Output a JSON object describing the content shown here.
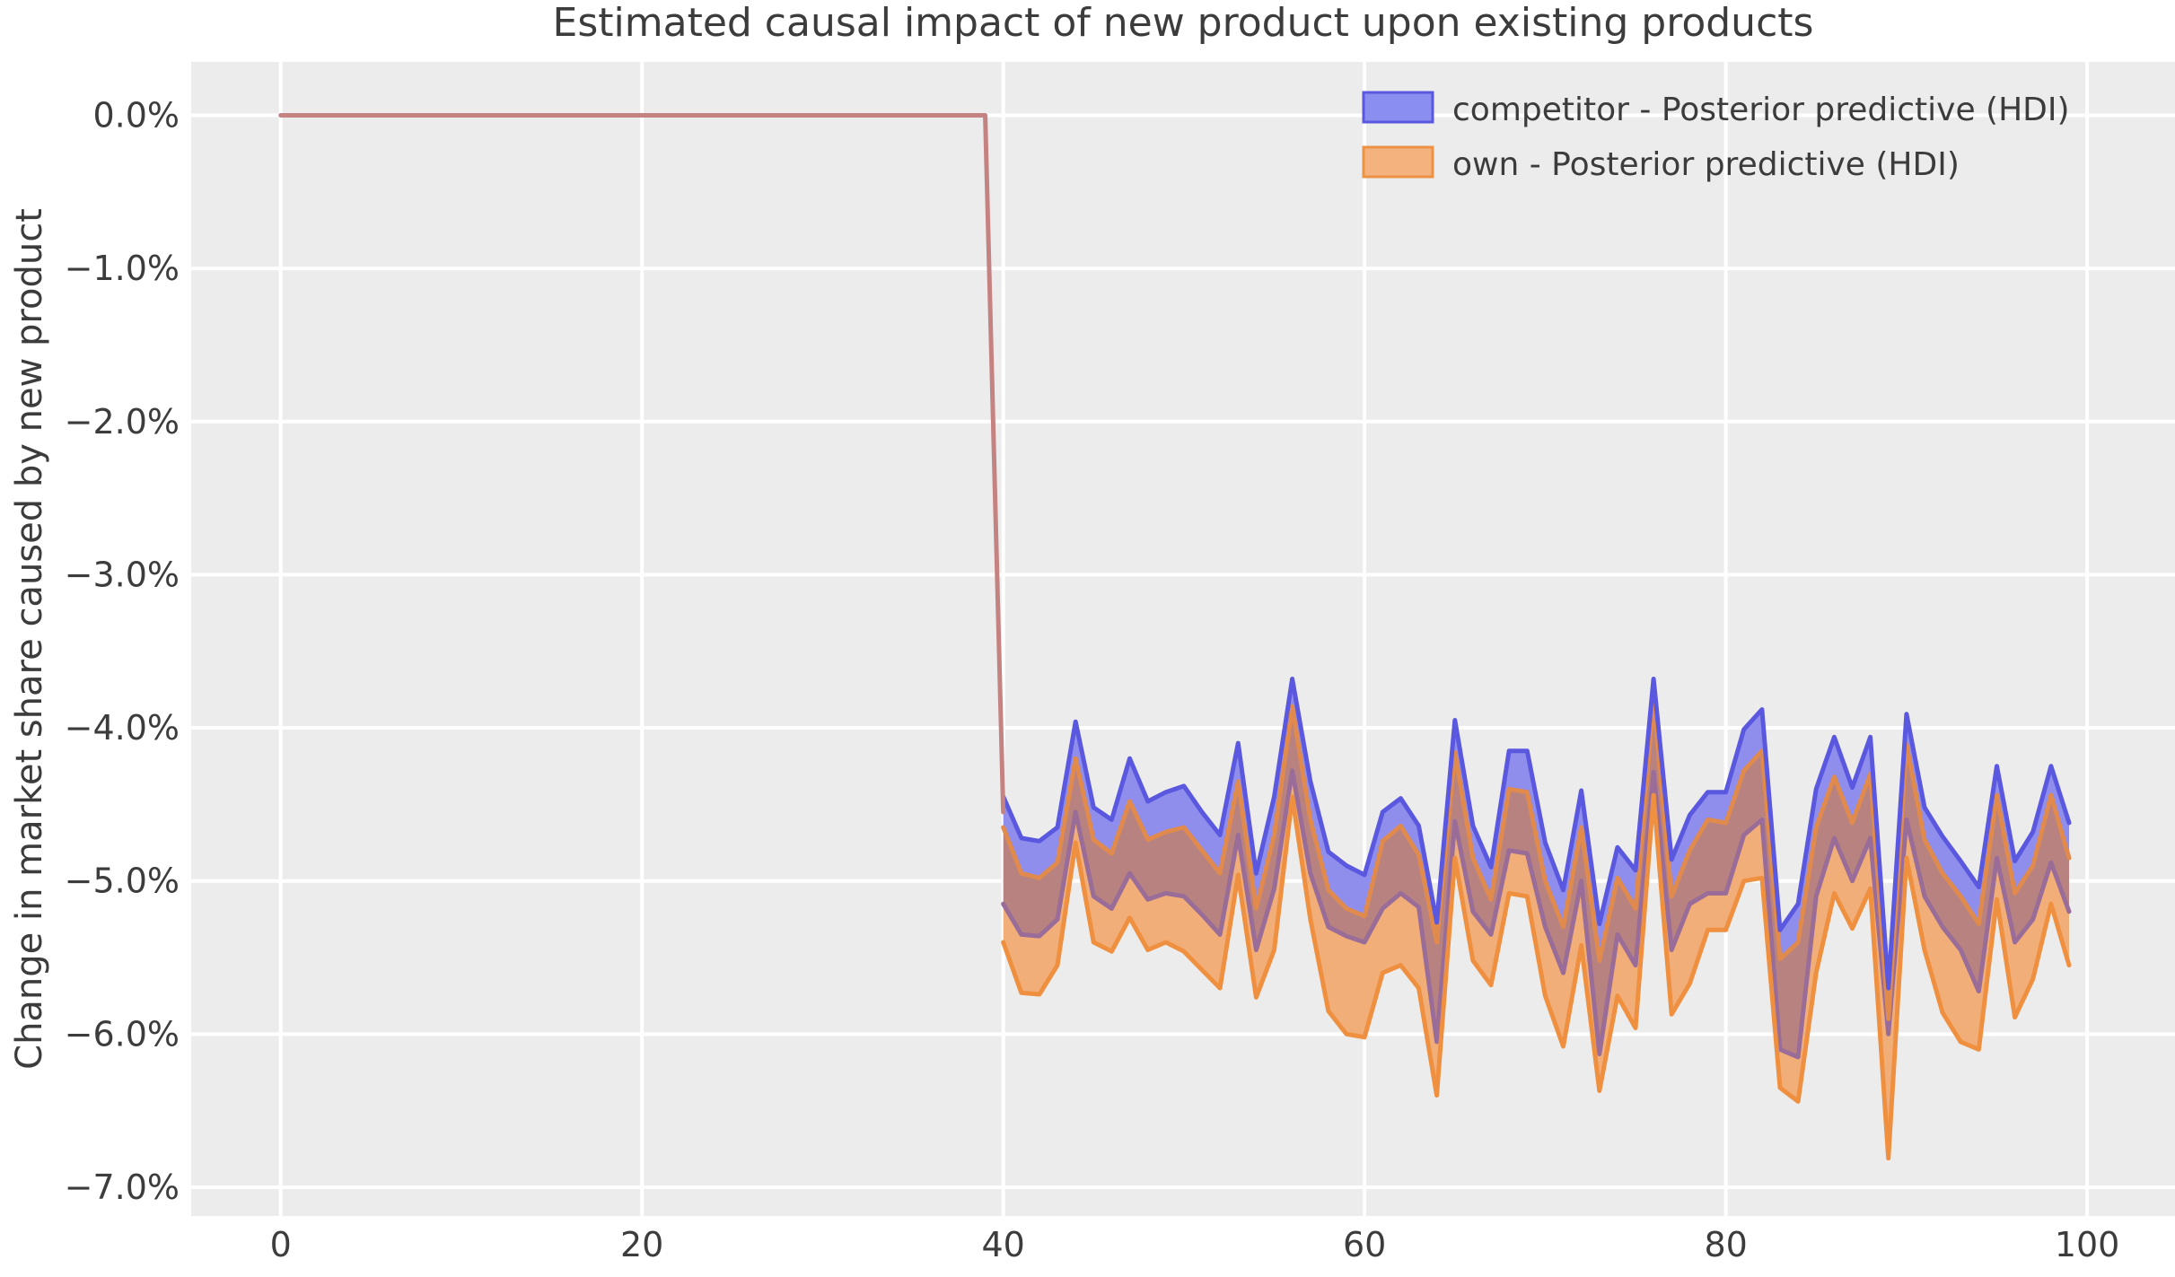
{
  "chart": {
    "title": "Estimated causal impact of new product upon existing products",
    "ylabel": "Change in market share caused by new product",
    "legend": {
      "items": [
        {
          "label": "competitor - Posterior predictive (HDI)",
          "fill": "#8a8eee",
          "edge": "#5b58e0"
        },
        {
          "label": "own - Posterior predictive (HDI)",
          "fill": "#f4b27e",
          "edge": "#ec9244"
        }
      ],
      "position": "upper right"
    },
    "x_tick_labels": [
      "0",
      "20",
      "40",
      "60",
      "80",
      "100"
    ],
    "y_tick_labels": [
      "0.0%",
      "−1.0%",
      "−2.0%",
      "−3.0%",
      "−4.0%",
      "−5.0%",
      "−6.0%",
      "−7.0%"
    ],
    "colors": {
      "figure_bg": "#ffffff",
      "axes_bg": "#ececec",
      "grid": "#ffffff",
      "competitor_fill": "#908eed",
      "own_fill": "#f2ae78",
      "overlap_fill": "#b78280",
      "competitor_upper_edge": "#5b58e0",
      "competitor_lower_edge": "#9a6d98",
      "own_upper_edge": "#e08a4e",
      "own_lower_edge": "#ef9040",
      "pre_period_line": "#c48281",
      "title_text": "#262626",
      "tick_text": "#3c3c3c"
    }
  },
  "chart_data": {
    "type": "area",
    "title": "Estimated causal impact of new product upon existing products",
    "xlabel": "",
    "ylabel": "Change in market share caused by new product",
    "grid": true,
    "legend_position": "upper right",
    "x_tick_values": [
      0,
      20,
      40,
      60,
      80,
      100
    ],
    "y_tick_values_pct": [
      0,
      -1,
      -2,
      -3,
      -4,
      -5,
      -6,
      -7
    ],
    "xlim": [
      -4.95,
      104.9
    ],
    "ylim_pct": [
      -7.19,
      0.35
    ],
    "pre_period": {
      "x_start": 0,
      "x_end": 39,
      "value_pct": 0,
      "note": "flat line at 0.0% before intervention"
    },
    "x": [
      40,
      41,
      42,
      43,
      44,
      45,
      46,
      47,
      48,
      49,
      50,
      51,
      52,
      53,
      54,
      55,
      56,
      57,
      58,
      59,
      60,
      61,
      62,
      63,
      64,
      65,
      66,
      67,
      68,
      69,
      70,
      71,
      72,
      73,
      74,
      75,
      76,
      77,
      78,
      79,
      80,
      81,
      82,
      83,
      84,
      85,
      86,
      87,
      88,
      89,
      90,
      91,
      92,
      93,
      94,
      95,
      96,
      97,
      98,
      99
    ],
    "series": [
      {
        "name": "competitor - Posterior predictive (HDI)",
        "hdi_upper_pct": [
          -4.45,
          -4.72,
          -4.74,
          -4.65,
          -3.96,
          -4.52,
          -4.6,
          -4.2,
          -4.48,
          -4.42,
          -4.38,
          -4.55,
          -4.7,
          -4.1,
          -4.95,
          -4.45,
          -3.68,
          -4.35,
          -4.81,
          -4.9,
          -4.96,
          -4.55,
          -4.46,
          -4.64,
          -5.27,
          -3.95,
          -4.64,
          -4.91,
          -4.15,
          -4.15,
          -4.75,
          -5.06,
          -4.41,
          -5.28,
          -4.78,
          -4.93,
          -3.68,
          -4.86,
          -4.57,
          -4.42,
          -4.42,
          -4.01,
          -3.88,
          -5.32,
          -5.15,
          -4.4,
          -4.06,
          -4.39,
          -4.06,
          -5.7,
          -3.91,
          -4.52,
          -4.71,
          -4.87,
          -5.04,
          -4.25,
          -4.87,
          -4.68,
          -4.25,
          -4.62
        ],
        "hdi_lower_pct": [
          -5.15,
          -5.35,
          -5.36,
          -5.25,
          -4.55,
          -5.1,
          -5.18,
          -4.95,
          -5.12,
          -5.08,
          -5.1,
          -5.22,
          -5.35,
          -4.7,
          -5.45,
          -5.05,
          -4.28,
          -4.95,
          -5.3,
          -5.36,
          -5.4,
          -5.18,
          -5.08,
          -5.17,
          -6.05,
          -4.61,
          -5.2,
          -5.35,
          -4.8,
          -4.82,
          -5.3,
          -5.6,
          -5.0,
          -6.13,
          -5.35,
          -5.55,
          -4.29,
          -5.45,
          -5.15,
          -5.08,
          -5.08,
          -4.7,
          -4.6,
          -6.1,
          -6.15,
          -5.1,
          -4.72,
          -5.0,
          -4.72,
          -6.0,
          -4.6,
          -5.1,
          -5.3,
          -5.45,
          -5.72,
          -4.85,
          -5.4,
          -5.25,
          -4.88,
          -5.2
        ]
      },
      {
        "name": "own - Posterior predictive (HDI)",
        "hdi_upper_pct": [
          -4.65,
          -4.95,
          -4.98,
          -4.88,
          -4.2,
          -4.73,
          -4.82,
          -4.48,
          -4.73,
          -4.68,
          -4.65,
          -4.8,
          -4.95,
          -4.35,
          -5.18,
          -4.7,
          -3.86,
          -4.6,
          -5.06,
          -5.18,
          -5.23,
          -4.74,
          -4.64,
          -4.83,
          -5.4,
          -4.16,
          -4.85,
          -5.12,
          -4.4,
          -4.42,
          -5.0,
          -5.3,
          -4.65,
          -5.52,
          -4.98,
          -5.18,
          -3.82,
          -5.1,
          -4.8,
          -4.6,
          -4.62,
          -4.28,
          -4.15,
          -5.51,
          -5.4,
          -4.65,
          -4.32,
          -4.62,
          -4.3,
          -5.9,
          -4.11,
          -4.73,
          -4.95,
          -5.1,
          -5.28,
          -4.44,
          -5.08,
          -4.9,
          -4.44,
          -4.85
        ],
        "hdi_lower_pct": [
          -5.4,
          -5.73,
          -5.74,
          -5.55,
          -4.75,
          -5.4,
          -5.46,
          -5.24,
          -5.45,
          -5.4,
          -5.46,
          -5.58,
          -5.7,
          -4.96,
          -5.76,
          -5.45,
          -4.45,
          -5.25,
          -5.85,
          -6.0,
          -6.02,
          -5.6,
          -5.55,
          -5.7,
          -6.4,
          -4.85,
          -5.52,
          -5.68,
          -5.08,
          -5.1,
          -5.75,
          -6.08,
          -5.42,
          -6.37,
          -5.75,
          -5.96,
          -4.44,
          -5.87,
          -5.67,
          -5.32,
          -5.32,
          -5.0,
          -4.98,
          -6.35,
          -6.44,
          -5.6,
          -5.08,
          -5.31,
          -5.05,
          -6.81,
          -4.85,
          -5.45,
          -5.86,
          -6.05,
          -6.1,
          -5.12,
          -5.89,
          -5.64,
          -5.15,
          -5.55
        ]
      }
    ]
  }
}
